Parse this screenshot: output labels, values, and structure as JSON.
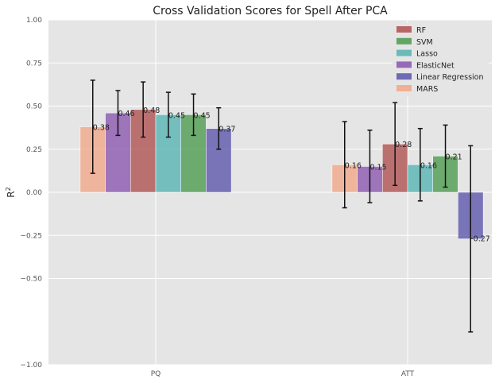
{
  "chart_data": {
    "type": "bar",
    "title": "Cross Validation Scores for Spell After PCA",
    "xlabel": "",
    "ylabel": "R",
    "ylabel_superscript": "2",
    "ylim": [
      -1.0,
      1.0
    ],
    "yticks": [
      -1.0,
      -0.5,
      -0.25,
      0.0,
      0.25,
      0.5,
      0.75,
      1.0
    ],
    "ytick_labels": [
      "−1.00",
      "−0.50",
      "−0.25",
      "0.00",
      "0.25",
      "0.50",
      "0.75",
      "1.00"
    ],
    "categories": [
      "PQ",
      "ATT"
    ],
    "bar_order": [
      "MARS",
      "ElasticNet",
      "RF",
      "Lasso",
      "SVM",
      "Linear Regression"
    ],
    "legend_order": [
      "RF",
      "SVM",
      "Lasso",
      "ElasticNet",
      "Linear Regression",
      "MARS"
    ],
    "legend_position": "top-right",
    "grid": true,
    "series": [
      {
        "name": "RF",
        "color": "#b0504f",
        "values": [
          0.48,
          0.28
        ],
        "errors": [
          0.16,
          0.24
        ],
        "labels": [
          "0.48",
          "0.28"
        ]
      },
      {
        "name": "SVM",
        "color": "#4c9a4c",
        "values": [
          0.45,
          0.21
        ],
        "errors": [
          0.12,
          0.18
        ],
        "labels": [
          "0.45",
          "0.21"
        ]
      },
      {
        "name": "Lasso",
        "color": "#56b3b3",
        "values": [
          0.45,
          0.16
        ],
        "errors": [
          0.13,
          0.21
        ],
        "labels": [
          "0.45",
          "0.16"
        ]
      },
      {
        "name": "ElasticNet",
        "color": "#8a55b0",
        "values": [
          0.46,
          0.15
        ],
        "errors": [
          0.13,
          0.21
        ],
        "labels": [
          "0.46",
          "0.15"
        ]
      },
      {
        "name": "Linear Regression",
        "color": "#5a55ab",
        "values": [
          0.37,
          -0.27
        ],
        "errors": [
          0.12,
          0.54
        ],
        "labels": [
          "0.37",
          "-0.27"
        ]
      },
      {
        "name": "MARS",
        "color": "#f2a688",
        "values": [
          0.38,
          0.16
        ],
        "errors": [
          0.27,
          0.25
        ],
        "labels": [
          "0.38",
          "0.16"
        ]
      }
    ]
  }
}
